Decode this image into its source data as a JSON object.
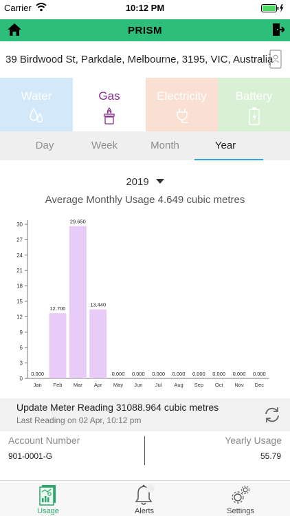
{
  "status_bar": {
    "carrier": "Carrier",
    "time": "10:12 PM"
  },
  "header": {
    "title": "PRISM"
  },
  "address": "39 Birdwood St, Parkdale, Melbourne, 3195, VIC, Australia",
  "utility_tabs": [
    {
      "label": "Water",
      "icon": "water-drops-icon"
    },
    {
      "label": "Gas",
      "icon": "gas-burner-icon",
      "selected": true
    },
    {
      "label": "Electricity",
      "icon": "plug-icon"
    },
    {
      "label": "Battery",
      "icon": "battery-icon"
    }
  ],
  "period_tabs": [
    {
      "label": "Day"
    },
    {
      "label": "Week"
    },
    {
      "label": "Month"
    },
    {
      "label": "Year",
      "selected": true
    }
  ],
  "year_selector": "2019",
  "average_usage": "Average Monthly Usage 4.649 cubic metres",
  "chart_data": {
    "type": "bar",
    "categories": [
      "Jan",
      "Feb",
      "Mar",
      "Apr",
      "May",
      "Jun",
      "Jul",
      "Aug",
      "Sep",
      "Oct",
      "Nov",
      "Dec"
    ],
    "values": [
      0,
      12.7,
      29.65,
      13.44,
      0,
      0,
      0,
      0,
      0,
      0,
      0,
      0
    ],
    "data_labels": [
      "0.000",
      "12.700",
      "29.650",
      "13.440",
      "0.000",
      "0.000",
      "0.000",
      "0.000",
      "0.000",
      "0.000",
      "0.000",
      "0.000"
    ],
    "yticks": [
      0,
      3,
      6,
      9,
      12,
      15,
      18,
      21,
      24,
      27,
      30
    ],
    "ylim": [
      0,
      30
    ],
    "title": "",
    "xlabel": "",
    "ylabel": "",
    "bar_color": "#e8cbf7",
    "grid": false
  },
  "meter": {
    "title": "Update Meter Reading 31088.964 cubic metres",
    "last_reading": "Last Reading on 02 Apr, 10:12 pm"
  },
  "account": {
    "number_label": "Account Number",
    "number": "901-0001-G",
    "yearly_label": "Yearly Usage",
    "yearly_value": "55.79"
  },
  "tab_bar": [
    {
      "label": "Usage",
      "icon": "usage-report-icon",
      "selected": true
    },
    {
      "label": "Alerts",
      "icon": "bell-icon"
    },
    {
      "label": "Settings",
      "icon": "gears-icon"
    }
  ],
  "colors": {
    "header": "#2dbf7a",
    "gas_accent": "#8a2b8e",
    "selection_underline": "#3aa1db"
  }
}
